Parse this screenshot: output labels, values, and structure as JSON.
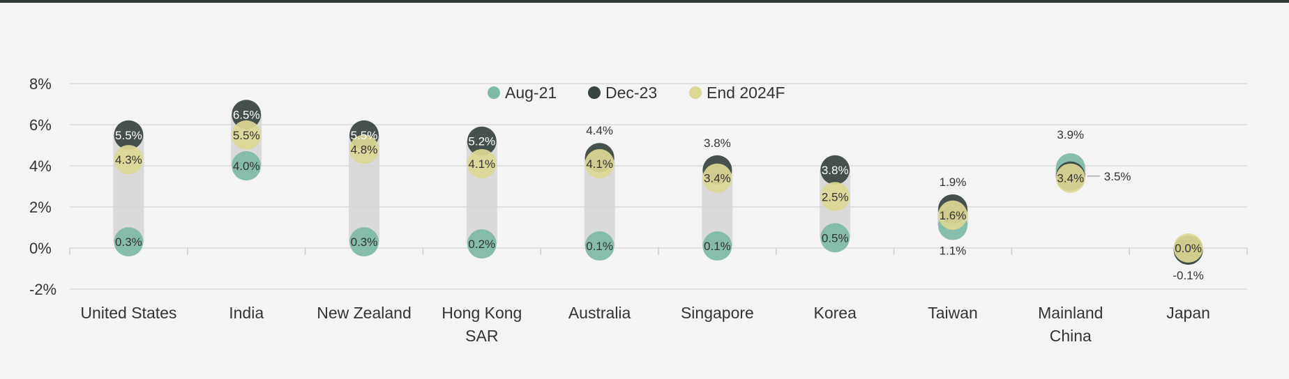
{
  "chart_data": {
    "type": "scatter",
    "title": "",
    "xlabel": "",
    "ylabel": "",
    "ylim": [
      -2,
      8
    ],
    "y_ticks": [
      "8%",
      "6%",
      "4%",
      "2%",
      "0%",
      "-2%"
    ],
    "y_tick_values": [
      8,
      6,
      4,
      2,
      0,
      -2
    ],
    "grid": true,
    "legend_position": "top-center",
    "categories": [
      [
        "United States"
      ],
      [
        "India"
      ],
      [
        "New Zealand"
      ],
      [
        "Hong Kong",
        "SAR"
      ],
      [
        "Australia"
      ],
      [
        "Singapore"
      ],
      [
        "Korea"
      ],
      [
        "Taiwan"
      ],
      [
        "Mainland",
        "China"
      ],
      [
        "Japan"
      ]
    ],
    "series": [
      {
        "name": "Aug-21",
        "color": "#7fb9a8",
        "values": [
          0.3,
          4.0,
          0.3,
          0.2,
          0.1,
          0.1,
          0.5,
          1.1,
          3.9,
          -0.1
        ],
        "labels": [
          "0.3%",
          "4.0%",
          "0.3%",
          "0.2%",
          "0.1%",
          "0.1%",
          "0.5%",
          "1.1%",
          "3.9%",
          "-0.1%"
        ]
      },
      {
        "name": "Dec-23",
        "color": "#38443f",
        "values": [
          5.5,
          6.5,
          5.5,
          5.2,
          4.4,
          3.8,
          3.8,
          1.9,
          3.5,
          -0.1
        ],
        "labels": [
          "5.5%",
          "6.5%",
          "5.5%",
          "5.2%",
          "4.4%",
          "3.8%",
          "3.8%",
          "1.9%",
          "3.5%",
          ""
        ]
      },
      {
        "name": "End 2024F",
        "color": "#dcd795",
        "values": [
          4.3,
          5.5,
          4.8,
          4.1,
          4.1,
          3.4,
          2.5,
          1.6,
          3.4,
          0.0
        ],
        "labels": [
          "4.3%",
          "5.5%",
          "4.8%",
          "4.1%",
          "4.1%",
          "3.4%",
          "2.5%",
          "1.6%",
          "3.4%",
          "0.0%"
        ]
      }
    ],
    "range_bar_color": "#d5d5d5"
  }
}
